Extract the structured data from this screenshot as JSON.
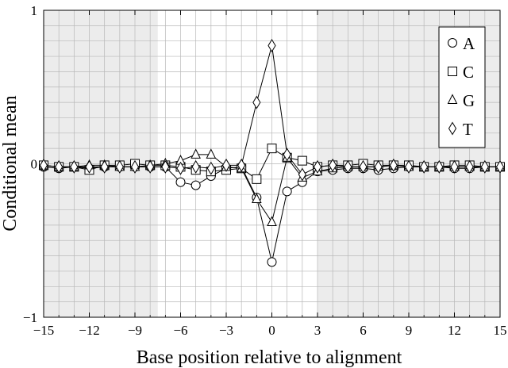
{
  "chart_data": {
    "type": "line",
    "title": "",
    "xlabel": "Base position relative to alignment",
    "ylabel": "Conditional mean",
    "xlim": [
      -15,
      15
    ],
    "ylim": [
      -1,
      1
    ],
    "xticks": [
      -15,
      -12,
      -9,
      -6,
      -3,
      0,
      3,
      6,
      9,
      12,
      15
    ],
    "xtick_labels": [
      "−15",
      "−12",
      "−9",
      "−6",
      "−3",
      "0",
      "3",
      "6",
      "9",
      "12",
      "15"
    ],
    "yticks": [
      -1,
      0,
      1
    ],
    "ytick_labels": [
      "−1",
      "0",
      "1"
    ],
    "grid": true,
    "shaded_x_ranges": [
      [
        -15,
        -7.5
      ],
      [
        3,
        15
      ]
    ],
    "legend_position": "top-right",
    "x": [
      -15,
      -14,
      -13,
      -12,
      -11,
      -10,
      -9,
      -8,
      -7,
      -6,
      -5,
      -4,
      -3,
      -2,
      -1,
      0,
      1,
      2,
      3,
      4,
      5,
      6,
      7,
      8,
      9,
      10,
      11,
      12,
      13,
      14,
      15
    ],
    "series": [
      {
        "name": "A",
        "marker": "circle",
        "values": [
          -0.02,
          -0.03,
          -0.02,
          -0.03,
          -0.02,
          -0.02,
          -0.02,
          -0.02,
          -0.02,
          -0.12,
          -0.14,
          -0.08,
          -0.03,
          -0.02,
          -0.22,
          -0.64,
          -0.18,
          -0.12,
          -0.05,
          -0.04,
          -0.03,
          -0.03,
          -0.04,
          -0.03,
          -0.02,
          -0.02,
          -0.02,
          -0.03,
          -0.03,
          -0.02,
          -0.02
        ]
      },
      {
        "name": "C",
        "marker": "square",
        "values": [
          -0.01,
          -0.02,
          -0.02,
          -0.04,
          -0.01,
          -0.01,
          0.0,
          -0.01,
          -0.01,
          -0.02,
          -0.04,
          -0.05,
          -0.04,
          -0.03,
          -0.1,
          0.1,
          0.04,
          0.02,
          -0.02,
          -0.01,
          -0.01,
          0.0,
          -0.01,
          -0.01,
          -0.01,
          -0.02,
          -0.02,
          -0.01,
          -0.01,
          -0.02,
          -0.02
        ]
      },
      {
        "name": "G",
        "marker": "triangle",
        "values": [
          -0.01,
          -0.02,
          -0.02,
          -0.01,
          -0.01,
          -0.02,
          -0.02,
          -0.01,
          0.0,
          0.02,
          0.06,
          0.06,
          -0.02,
          -0.03,
          -0.23,
          -0.38,
          0.04,
          -0.09,
          -0.05,
          -0.03,
          -0.02,
          -0.02,
          -0.02,
          -0.01,
          -0.02,
          -0.02,
          -0.02,
          -0.02,
          -0.02,
          -0.02,
          -0.02
        ]
      },
      {
        "name": "T",
        "marker": "diamond",
        "values": [
          -0.01,
          -0.02,
          -0.02,
          -0.02,
          -0.02,
          -0.02,
          -0.02,
          -0.02,
          -0.02,
          -0.03,
          -0.02,
          -0.03,
          -0.01,
          -0.01,
          0.4,
          0.77,
          0.06,
          -0.07,
          -0.02,
          -0.01,
          -0.02,
          -0.02,
          -0.02,
          -0.01,
          -0.02,
          -0.02,
          -0.02,
          -0.02,
          -0.02,
          -0.02,
          -0.02
        ]
      }
    ]
  }
}
